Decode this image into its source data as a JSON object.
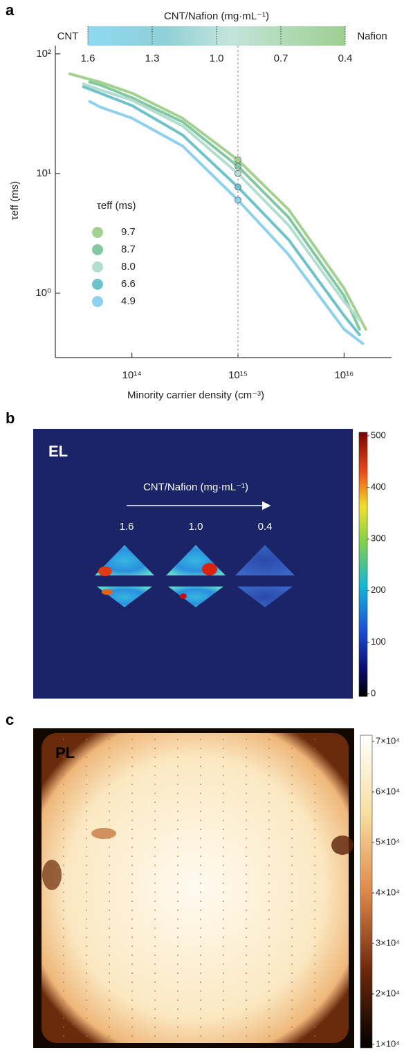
{
  "chart_data": {
    "type": "line",
    "panel_label": "a",
    "log_x": true,
    "log_y": true,
    "xlabel": "Minority carrier density (cm⁻³)",
    "ylabel": "τeff (ms)",
    "xlim": [
      19000000000000.0,
      2.8e+16
    ],
    "ylim": [
      0.29,
      117
    ],
    "xticks": [
      {
        "value": 100000000000000.0,
        "label": "10¹⁴"
      },
      {
        "value": 1000000000000000.0,
        "label": "10¹⁵"
      },
      {
        "value": 1e+16,
        "label": "10¹⁶"
      }
    ],
    "yticks": [
      {
        "value": 1,
        "label": "10⁰"
      },
      {
        "value": 10,
        "label": "10¹"
      },
      {
        "value": 100,
        "label": "10²"
      }
    ],
    "vline": 1000000000000000.0,
    "legend_title": "τeff (ms)",
    "legend": "upper left",
    "colorbar": {
      "title": "CNT/Nafion (mg·mL⁻¹)",
      "left_label": "CNT",
      "right_label": "Nafion",
      "lim": [
        1.6,
        0.4
      ],
      "ticks": [
        1.6,
        1.3,
        {
          "value": 1,
          "label": "1.0"
        },
        0.7,
        0.4
      ]
    },
    "series": [
      {
        "name": "9.7",
        "color": "#a3d18f",
        "x": [
          26000000000000.0,
          50000000000000.0,
          100000000000000.0,
          300000000000000.0,
          1000000000000000.0,
          3000000000000000.0,
          1e+16,
          1.6e+16
        ],
        "values": [
          68,
          58,
          47,
          29,
          13,
          5,
          1.1,
          0.5
        ]
      },
      {
        "name": "8.7",
        "color": "#82c8a0",
        "x": [
          40000000000000.0,
          50000000000000.0,
          100000000000000.0,
          300000000000000.0,
          1000000000000000.0,
          3000000000000000.0,
          1e+16,
          1.4e+16
        ],
        "values": [
          58,
          55,
          43,
          27,
          11.5,
          4.3,
          0.95,
          0.5
        ]
      },
      {
        "name": "8.0",
        "color": "#b3ddd0",
        "x": [
          35000000000000.0,
          50000000000000.0,
          100000000000000.0,
          300000000000000.0,
          1000000000000000.0,
          3000000000000000.0,
          1e+16,
          1.4e+16
        ],
        "values": [
          56,
          50,
          41,
          25,
          10,
          3.7,
          0.85,
          0.6
        ]
      },
      {
        "name": "6.6",
        "color": "#6ec3ca",
        "x": [
          35000000000000.0,
          50000000000000.0,
          100000000000000.0,
          300000000000000.0,
          1000000000000000.0,
          3000000000000000.0,
          1e+16,
          1.4e+16
        ],
        "values": [
          53,
          47,
          37,
          21,
          7.7,
          2.8,
          0.65,
          0.45
        ]
      },
      {
        "name": "4.9",
        "color": "#8dd1ee",
        "x": [
          40000000000000.0,
          50000000000000.0,
          100000000000000.0,
          300000000000000.0,
          1000000000000000.0,
          3000000000000000.0,
          1e+16,
          1.5e+16
        ],
        "values": [
          40,
          36,
          29,
          17,
          6,
          2.1,
          0.5,
          0.38
        ]
      }
    ]
  },
  "panel_b": {
    "label": "b",
    "title": "EL",
    "arrow_label": "CNT/Nafion (mg·mL⁻¹)",
    "sample_labels": [
      "1.6",
      "1.0",
      "0.4"
    ],
    "clim": [
      0,
      500
    ],
    "cticks": [
      0,
      100,
      200,
      300,
      400,
      500
    ]
  },
  "panel_c": {
    "label": "c",
    "title": "PL",
    "clim": [
      10000,
      70000
    ],
    "cticks": [
      {
        "value": 10000,
        "label": "1×10⁴"
      },
      {
        "value": 20000,
        "label": "2×10⁴"
      },
      {
        "value": 30000,
        "label": "3×10⁴"
      },
      {
        "value": 40000,
        "label": "4×10⁴"
      },
      {
        "value": 50000,
        "label": "5×10⁴"
      },
      {
        "value": 60000,
        "label": "6×10⁴"
      },
      {
        "value": 70000,
        "label": "7×10⁴"
      }
    ]
  }
}
